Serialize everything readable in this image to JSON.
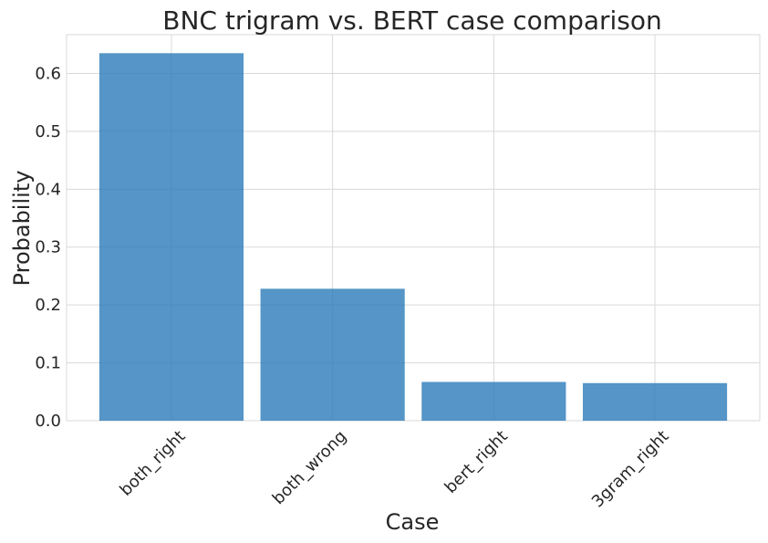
{
  "chart_data": {
    "type": "bar",
    "title": "BNC trigram vs. BERT case comparison",
    "xlabel": "Case",
    "ylabel": "Probability",
    "categories": [
      "both_right",
      "both_wrong",
      "bert_right",
      "3gram_right"
    ],
    "values": [
      0.635,
      0.228,
      0.067,
      0.065
    ],
    "ylim": [
      0,
      0.667
    ],
    "yticks": [
      0.0,
      0.1,
      0.2,
      0.3,
      0.4,
      0.5,
      0.6
    ],
    "ytick_labels": [
      "0.0",
      "0.1",
      "0.2",
      "0.3",
      "0.4",
      "0.5",
      "0.6"
    ],
    "grid": true,
    "xtick_rotation": 45,
    "colors": {
      "bar": "#2b7bba",
      "bar_opacity": 0.8,
      "grid": "#d9d9d9",
      "frame": "#d9d9d9",
      "text": "#262626"
    }
  }
}
